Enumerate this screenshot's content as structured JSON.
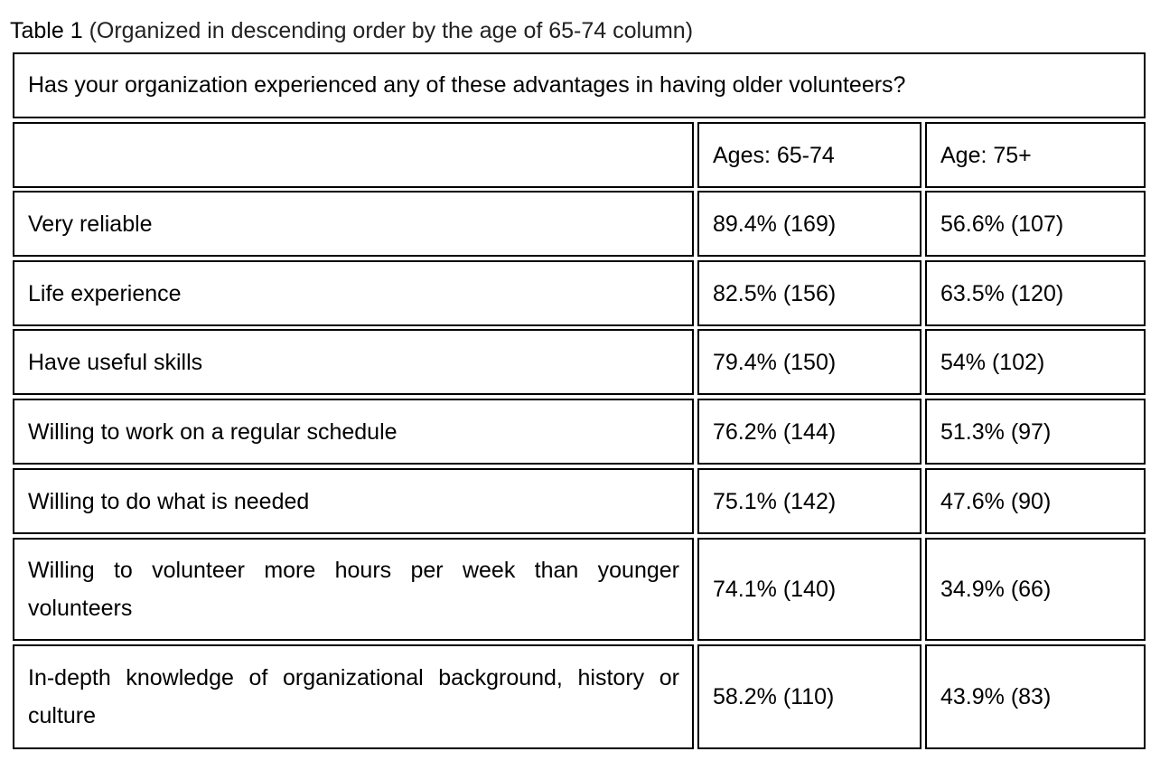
{
  "caption": {
    "label": "Table 1",
    "note": "(Organized in descending order by the age of 65-74 column)"
  },
  "table": {
    "question": "Has your organization experienced any of these advantages in having older volunteers?",
    "columns": [
      "",
      "Ages: 65-74",
      "Age: 75+"
    ],
    "rows": [
      {
        "advantage": "Very reliable",
        "ages_65_74": "89.4% (169)",
        "age_75_plus": "56.6% (107)"
      },
      {
        "advantage": "Life experience",
        "ages_65_74": "82.5% (156)",
        "age_75_plus": "63.5% (120)"
      },
      {
        "advantage": "Have useful skills",
        "ages_65_74": "79.4% (150)",
        "age_75_plus": "54% (102)"
      },
      {
        "advantage": "Willing to work on a regular schedule",
        "ages_65_74": "76.2% (144)",
        "age_75_plus": "51.3% (97)"
      },
      {
        "advantage": "Willing to do what is needed",
        "ages_65_74": "75.1% (142)",
        "age_75_plus": "47.6% (90)"
      },
      {
        "advantage": "Willing to volunteer more hours per week than younger volunteers",
        "ages_65_74": "74.1% (140)",
        "age_75_plus": "34.9% (66)"
      },
      {
        "advantage": "In-depth knowledge of organizational background, history or culture",
        "ages_65_74": "58.2% (110)",
        "age_75_plus": "43.9% (83)"
      }
    ]
  }
}
